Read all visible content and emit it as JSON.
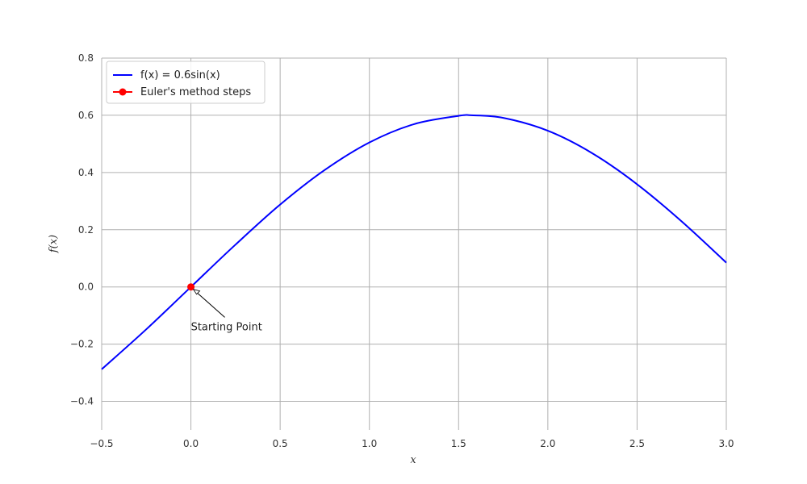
{
  "chart_data": {
    "type": "line",
    "title": "",
    "xlabel": "x",
    "ylabel": "f(x)",
    "xlim": [
      -0.5,
      3.0
    ],
    "ylim": [
      -0.5,
      0.8
    ],
    "xticks": [
      -0.5,
      0.0,
      0.5,
      1.0,
      1.5,
      2.0,
      2.5,
      3.0
    ],
    "xtick_labels": [
      "−0.5",
      "0.0",
      "0.5",
      "1.0",
      "1.5",
      "2.0",
      "2.5",
      "3.0"
    ],
    "yticks": [
      -0.4,
      -0.2,
      0.0,
      0.2,
      0.4,
      0.6,
      0.8
    ],
    "ytick_labels": [
      "−0.4",
      "−0.2",
      "0.0",
      "0.2",
      "0.4",
      "0.6",
      "0.8"
    ],
    "grid": true,
    "legend_position": "top-left",
    "series": [
      {
        "name": "f(x) = 0.6sin(x)",
        "kind": "line",
        "color": "#0000ff",
        "x": [
          -0.5,
          -0.25,
          0.0,
          0.25,
          0.5,
          0.75,
          1.0,
          1.25,
          1.5,
          1.5708,
          1.75,
          2.0,
          2.25,
          2.5,
          2.75,
          3.0
        ],
        "y": [
          -0.288,
          -0.148,
          0.0,
          0.148,
          0.288,
          0.409,
          0.505,
          0.569,
          0.598,
          0.6,
          0.591,
          0.546,
          0.467,
          0.359,
          0.229,
          0.085
        ]
      },
      {
        "name": "Euler's method steps",
        "kind": "line-marker",
        "color": "#ff0000",
        "x": [
          0.0
        ],
        "y": [
          0.0
        ]
      }
    ],
    "annotations": [
      {
        "text": "Starting Point",
        "x": 0.0,
        "y": 0.0,
        "text_x": 0.0,
        "text_y": -0.14
      }
    ]
  }
}
